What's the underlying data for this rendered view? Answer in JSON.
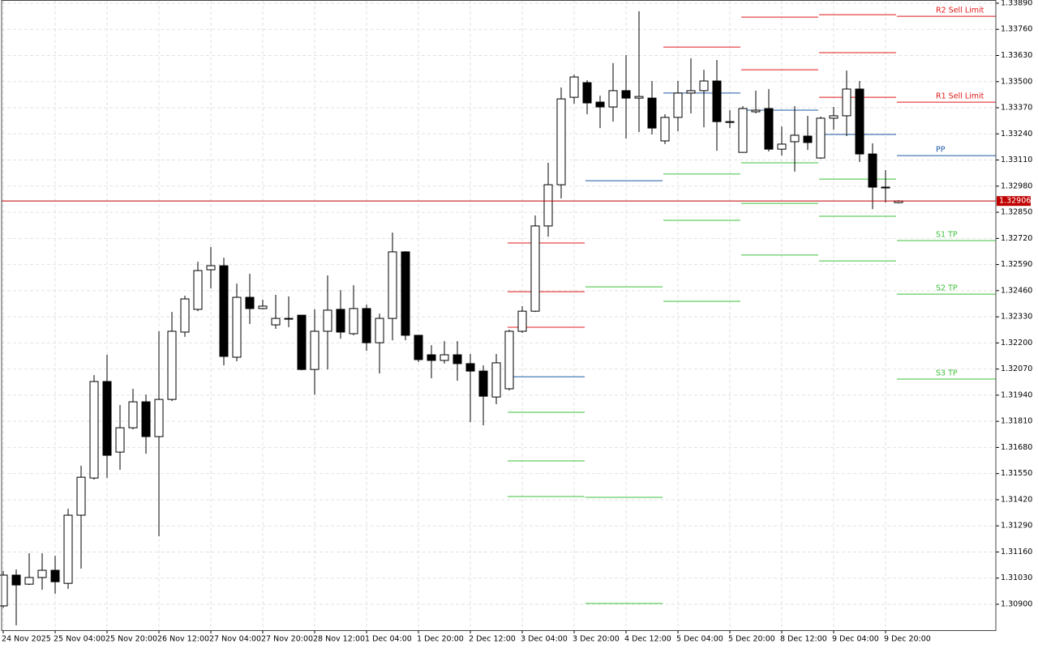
{
  "chart_data": {
    "type": "candlestick",
    "categories": [
      "24 Nov 2025",
      null,
      null,
      null,
      "25 Nov 04:00",
      null,
      null,
      null,
      "25 Nov 20:00",
      null,
      null,
      null,
      "26 Nov 12:00",
      null,
      null,
      null,
      "27 Nov 04:00",
      null,
      null,
      null,
      "27 Nov 20:00",
      null,
      null,
      null,
      "28 Nov 12:00",
      null,
      null,
      null,
      "1 Dec 04:00",
      null,
      null,
      null,
      "1 Dec 20:00",
      null,
      null,
      null,
      "2 Dec 12:00",
      null,
      null,
      null,
      "3 Dec 04:00",
      null,
      null,
      null,
      "3 Dec 20:00",
      null,
      null,
      null,
      "4 Dec 12:00",
      null,
      null,
      null,
      "5 Dec 04:00",
      null,
      null,
      null,
      "5 Dec 20:00",
      null,
      null,
      null,
      "8 Dec 12:00",
      null,
      null,
      null,
      "9 Dec 04:00",
      null,
      null,
      null,
      "9 Dec 20:00",
      null
    ],
    "open": [
      1.30892,
      1.31045,
      1.31,
      1.31033,
      1.31069,
      1.31004,
      1.31343,
      1.31528,
      1.32008,
      1.31657,
      1.31778,
      1.31907,
      1.31734,
      1.31919,
      1.32254,
      1.32367,
      1.32564,
      1.32584,
      1.32129,
      1.32427,
      1.32371,
      1.3229,
      1.32322,
      1.32338,
      1.32068,
      1.32258,
      1.32367,
      1.32246,
      1.32371,
      1.32201,
      1.32322,
      1.32653,
      1.32238,
      1.32141,
      1.32113,
      1.32141,
      1.32097,
      1.3206,
      1.31931,
      1.31972,
      1.32258,
      1.32358,
      1.32782,
      1.32987,
      1.33422,
      1.33495,
      1.33398,
      1.33374,
      1.33455,
      1.33418,
      1.33418,
      1.33205,
      1.33322,
      1.33443,
      1.33455,
      1.33503,
      1.33301,
      1.33148,
      1.3335,
      1.33366,
      1.33164,
      1.33201,
      1.33229,
      1.3312,
      1.33318,
      1.3333,
      1.33463,
      1.3314,
      1.32975,
      1.32898
    ],
    "high": [
      1.31065,
      1.31073,
      1.31154,
      1.31154,
      1.31141,
      1.31375,
      1.31589,
      1.3204,
      1.32141,
      1.31891,
      1.31972,
      1.31943,
      1.32258,
      1.32354,
      1.32435,
      1.32604,
      1.32677,
      1.32624,
      1.32495,
      1.32544,
      1.32415,
      1.32439,
      1.32431,
      1.32338,
      1.32367,
      1.32536,
      1.32463,
      1.32487,
      1.32391,
      1.32346,
      1.32749,
      1.32657,
      1.32238,
      1.32189,
      1.32209,
      1.32209,
      1.32145,
      1.32088,
      1.32145,
      1.32266,
      1.32383,
      1.32834,
      1.33096,
      1.33471,
      1.33535,
      1.33507,
      1.3343,
      1.33592,
      1.33632,
      1.3385,
      1.33503,
      1.33338,
      1.33503,
      1.33616,
      1.33559,
      1.33608,
      1.33358,
      1.33378,
      1.33455,
      1.33463,
      1.33277,
      1.33378,
      1.3333,
      1.33326,
      1.33374,
      1.33555,
      1.33503,
      1.33193,
      1.3306,
      1.3291
    ],
    "low": [
      1.30883,
      1.30795,
      1.30996,
      1.30972,
      1.30952,
      1.30976,
      1.31077,
      1.3152,
      1.31528,
      1.31569,
      1.3177,
      1.31649,
      1.31238,
      1.31911,
      1.3223,
      1.32358,
      1.32471,
      1.32088,
      1.32109,
      1.32294,
      1.32367,
      1.3227,
      1.32278,
      1.32064,
      1.31943,
      1.32068,
      1.32221,
      1.32238,
      1.32161,
      1.32048,
      1.32213,
      1.32213,
      1.32105,
      1.32024,
      1.32097,
      1.32012,
      1.31806,
      1.3179,
      1.31895,
      1.31964,
      1.3225,
      1.32354,
      1.32729,
      1.32919,
      1.3339,
      1.33338,
      1.33269,
      1.33301,
      1.33217,
      1.33249,
      1.33237,
      1.33189,
      1.33253,
      1.33342,
      1.33273,
      1.33156,
      1.33269,
      1.33148,
      1.33342,
      1.33152,
      1.33132,
      1.33052,
      1.3316,
      1.33116,
      1.33261,
      1.33229,
      1.331,
      1.32866,
      1.32898,
      1.32894
    ],
    "close": [
      1.31045,
      1.30996,
      1.31033,
      1.31069,
      1.31012,
      1.31343,
      1.31532,
      1.32008,
      1.31641,
      1.31778,
      1.31907,
      1.31734,
      1.31919,
      1.32258,
      1.32419,
      1.3256,
      1.32584,
      1.32133,
      1.32427,
      1.32371,
      1.32383,
      1.32322,
      1.32322,
      1.32068,
      1.32258,
      1.32363,
      1.32254,
      1.32371,
      1.32201,
      1.32322,
      1.32653,
      1.32238,
      1.32117,
      1.32113,
      1.32141,
      1.32097,
      1.3206,
      1.31935,
      1.32101,
      1.32258,
      1.32358,
      1.32782,
      1.32987,
      1.33414,
      1.33523,
      1.33394,
      1.33374,
      1.33455,
      1.33418,
      1.33426,
      1.33269,
      1.33322,
      1.33443,
      1.33455,
      1.33503,
      1.33301,
      1.33301,
      1.33366,
      1.33358,
      1.33164,
      1.33189,
      1.33233,
      1.33197,
      1.33318,
      1.3333,
      1.33463,
      1.3314,
      1.32975,
      1.32971,
      1.32906
    ],
    "levels": [
      {
        "color": "#e01818",
        "values": [
          1.32697,
          null,
          null,
          null,
          1.33833,
          null
        ]
      },
      {
        "name": "R2 Sell Limit",
        "color": "#e01818",
        "values": [
          1.32455,
          null,
          null,
          1.33821,
          1.33644,
          1.33825
        ]
      },
      {
        "name": "R1 Sell Limit",
        "color": "#e01818",
        "values": [
          1.32278,
          null,
          1.33672,
          1.33559,
          1.33422,
          1.33398
        ]
      },
      {
        "name": "PP",
        "color": "#1d5aa3",
        "values": [
          1.32032,
          1.33007,
          1.33443,
          1.33358,
          1.33237,
          1.33132
        ]
      },
      {
        "name": "S1 TP",
        "color": "#3cc03c",
        "values": [
          1.31855,
          1.32479,
          1.3304,
          1.33096,
          1.33015,
          1.32709
        ]
      },
      {
        "name": "S2 TP",
        "color": "#3cc03c",
        "values": [
          1.31613,
          1.31432,
          1.3281,
          1.32894,
          1.3283,
          1.32443
        ]
      },
      {
        "name": "S3 TP",
        "color": "#3cc03c",
        "values": [
          1.31436,
          1.30904,
          1.32407,
          1.32637,
          1.32608,
          1.3202
        ]
      }
    ],
    "current_price": 1.32906,
    "current_price_color": "#c00000",
    "ylim": [
      1.30771,
      1.33906
    ],
    "yticks": [
      {
        "value": 1.3389,
        "label": "1.33890"
      },
      {
        "value": 1.3376,
        "label": "1.33760"
      },
      {
        "value": 1.3363,
        "label": "1.33630"
      },
      {
        "value": 1.335,
        "label": "1.33500"
      },
      {
        "value": 1.3337,
        "label": "1.33370"
      },
      {
        "value": 1.3324,
        "label": "1.33240"
      },
      {
        "value": 1.3311,
        "label": "1.33110"
      },
      {
        "value": 1.3298,
        "label": "1.32980"
      },
      {
        "value": 1.3285,
        "label": "1.32850"
      },
      {
        "value": 1.3272,
        "label": "1.32720"
      },
      {
        "value": 1.3259,
        "label": "1.32590"
      },
      {
        "value": 1.3246,
        "label": "1.32460"
      },
      {
        "value": 1.3233,
        "label": "1.32330"
      },
      {
        "value": 1.322,
        "label": "1.32200"
      },
      {
        "value": 1.3207,
        "label": "1.32070"
      },
      {
        "value": 1.3194,
        "label": "1.31940"
      },
      {
        "value": 1.3181,
        "label": "1.31810"
      },
      {
        "value": 1.3168,
        "label": "1.31680"
      },
      {
        "value": 1.3155,
        "label": "1.31550"
      },
      {
        "value": 1.3142,
        "label": "1.31420"
      },
      {
        "value": 1.3129,
        "label": "1.31290"
      },
      {
        "value": 1.3116,
        "label": "1.31160"
      },
      {
        "value": 1.3103,
        "label": "1.31030"
      },
      {
        "value": 1.309,
        "label": "1.30900"
      }
    ],
    "grid": true
  }
}
